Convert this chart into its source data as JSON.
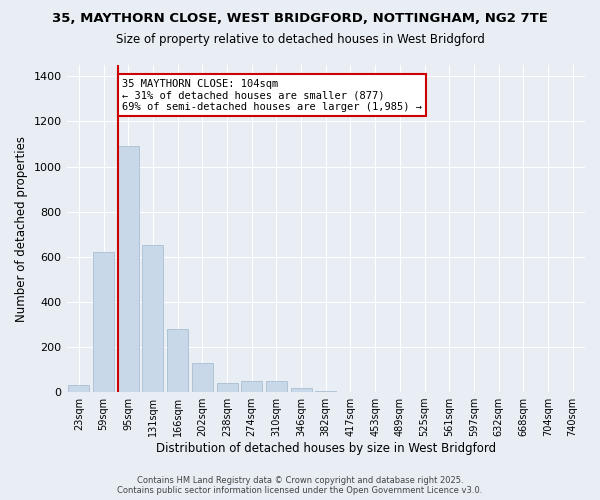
{
  "title_line1": "35, MAYTHORN CLOSE, WEST BRIDGFORD, NOTTINGHAM, NG2 7TE",
  "title_line2": "Size of property relative to detached houses in West Bridgford",
  "xlabel": "Distribution of detached houses by size in West Bridgford",
  "ylabel": "Number of detached properties",
  "bins": [
    "23sqm",
    "59sqm",
    "95sqm",
    "131sqm",
    "166sqm",
    "202sqm",
    "238sqm",
    "274sqm",
    "310sqm",
    "346sqm",
    "382sqm",
    "417sqm",
    "453sqm",
    "489sqm",
    "525sqm",
    "561sqm",
    "597sqm",
    "632sqm",
    "668sqm",
    "704sqm",
    "740sqm"
  ],
  "values": [
    30,
    620,
    1090,
    650,
    280,
    130,
    40,
    50,
    50,
    20,
    5,
    2,
    1,
    0,
    0,
    0,
    0,
    0,
    0,
    0,
    0
  ],
  "bar_color": "#c8d8e8",
  "bar_edge_color": "#a0b8d0",
  "property_line_bin_index": 2,
  "property_line_color": "#cc0000",
  "annotation_text": "35 MAYTHORN CLOSE: 104sqm\n← 31% of detached houses are smaller (877)\n69% of semi-detached houses are larger (1,985) →",
  "annotation_box_color": "#ffffff",
  "annotation_box_edge": "#cc0000",
  "ylim": [
    0,
    1450
  ],
  "yticks": [
    0,
    200,
    400,
    600,
    800,
    1000,
    1200,
    1400
  ],
  "background_color": "#e8eef4",
  "grid_color": "#ffffff",
  "footnote": "Contains HM Land Registry data © Crown copyright and database right 2025.\nContains public sector information licensed under the Open Government Licence v3.0."
}
